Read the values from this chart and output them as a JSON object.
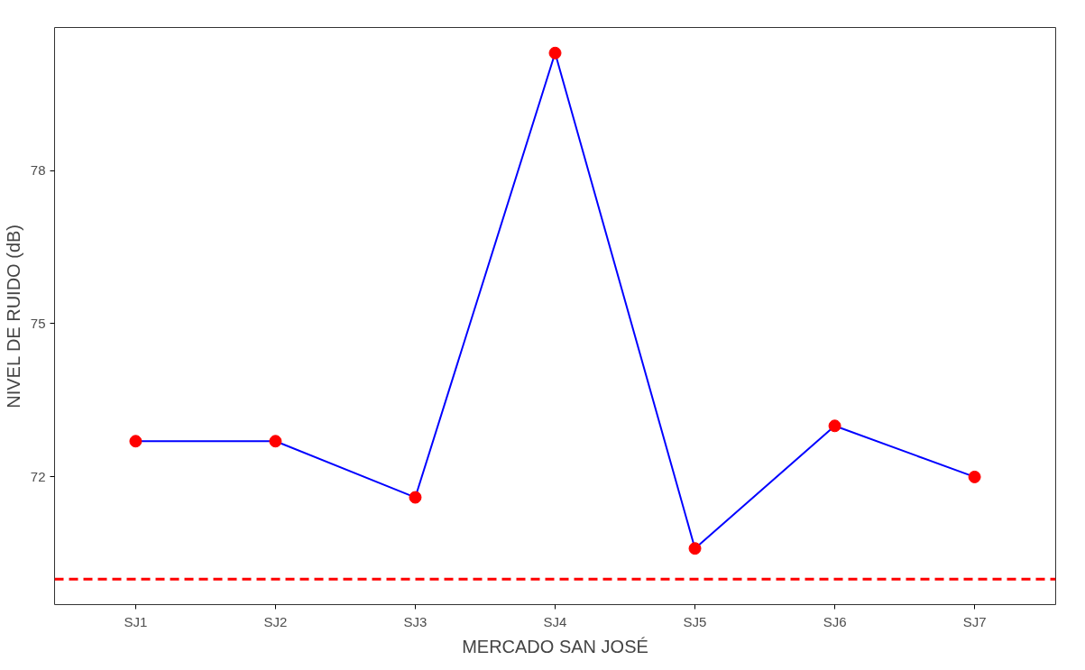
{
  "chart_data": {
    "type": "line",
    "xlabel": "MERCADO SAN JOSÉ",
    "ylabel": "NIVEL DE RUIDO (dB)",
    "categories": [
      "SJ1",
      "SJ2",
      "SJ3",
      "SJ4",
      "SJ5",
      "SJ6",
      "SJ7"
    ],
    "series": [
      {
        "color": "#0000ff",
        "values": [
          72.7,
          72.7,
          71.6,
          80.3,
          70.6,
          73.0,
          72.0
        ]
      }
    ],
    "marker": "circle",
    "line_style": "solid",
    "grid": false,
    "ylim": [
      69.5,
      80.8
    ],
    "yticks": [
      72,
      75,
      78
    ],
    "ref_lines": [
      {
        "axis": "y",
        "value": 70,
        "color": "#ff0000",
        "line_style": "dashed"
      }
    ]
  }
}
